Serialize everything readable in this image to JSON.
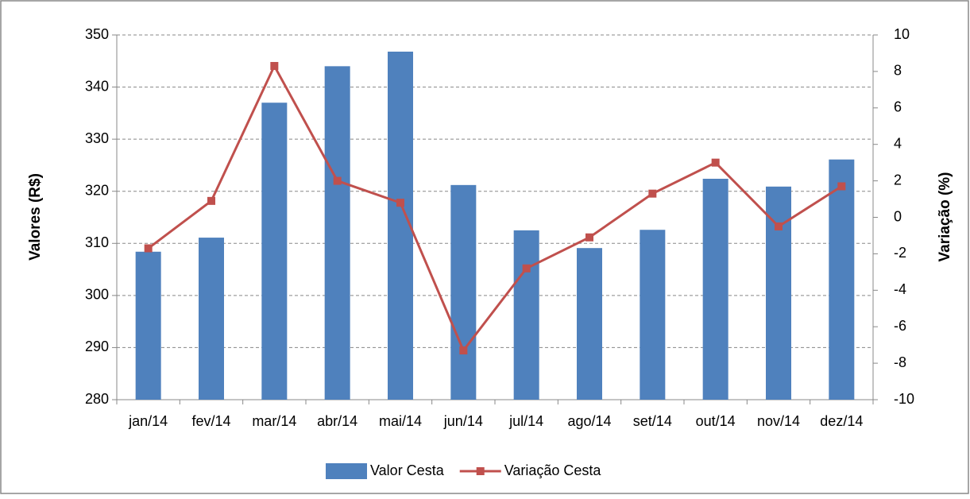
{
  "chart_data": {
    "type": "bar",
    "categories": [
      "jan/14",
      "fev/14",
      "mar/14",
      "abr/14",
      "mai/14",
      "jun/14",
      "jul/14",
      "ago/14",
      "set/14",
      "out/14",
      "nov/14",
      "dez/14"
    ],
    "series": [
      {
        "name": "Valor Cesta",
        "type": "bar",
        "color": "#4f81bd",
        "values": [
          308.4,
          311.1,
          337.0,
          344.0,
          346.8,
          321.2,
          312.5,
          309.1,
          312.6,
          322.4,
          320.9,
          326.1
        ]
      },
      {
        "name": "Variação Cesta",
        "type": "line",
        "axis": "y2",
        "color": "#c0504d",
        "values": [
          -1.7,
          0.9,
          8.3,
          2.0,
          0.8,
          -7.3,
          -2.8,
          -1.1,
          1.3,
          3.0,
          -0.5,
          1.7
        ]
      }
    ],
    "ylabel": "Valores (R$)",
    "y2label": "Variação (%)",
    "ylim": [
      280,
      350
    ],
    "yticks": [
      280,
      290,
      300,
      310,
      320,
      330,
      340,
      350
    ],
    "y2lim": [
      -10,
      10
    ],
    "y2ticks": [
      -10,
      -8,
      -6,
      -4,
      -2,
      0,
      2,
      4,
      6,
      8,
      10
    ],
    "grid": true,
    "legend": "bottom"
  }
}
